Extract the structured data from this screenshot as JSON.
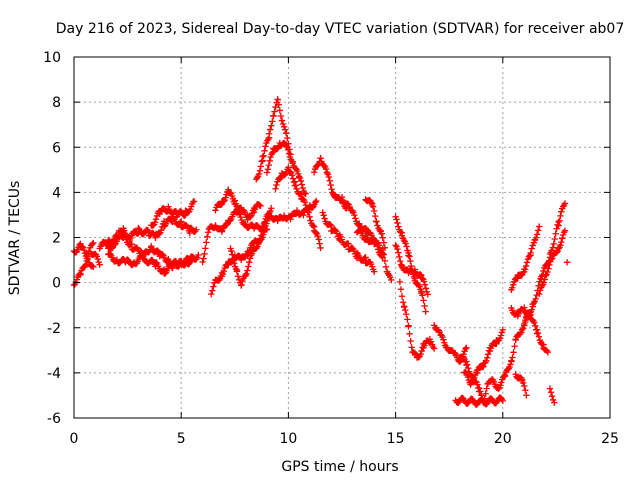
{
  "chart_data": {
    "type": "scatter",
    "title": "Day 216 of 2023, Sidereal Day-to-day VTEC variation (SDTVAR) for receiver ab07",
    "xlabel": "GPS time / hours",
    "ylabel": "SDTVAR / TECUs",
    "xlim": [
      0,
      25
    ],
    "ylim": [
      -6,
      10
    ],
    "xticks": [
      0,
      5,
      10,
      15,
      20,
      25
    ],
    "yticks": [
      -6,
      -4,
      -2,
      0,
      2,
      4,
      6,
      8,
      10
    ],
    "xtick_labels": [
      "0",
      "5",
      "10",
      "15",
      "20",
      "25"
    ],
    "ytick_labels": [
      "-6",
      "-4",
      "-2",
      "0",
      "2",
      "4",
      "6",
      "8",
      "10"
    ],
    "grid": true,
    "marker": "+",
    "series": [
      {
        "name": "ab07",
        "color": "#ff0000",
        "tracks": [
          [
            [
              0.0,
              1.4
            ],
            [
              0.3,
              1.6
            ],
            [
              0.6,
              1.2
            ],
            [
              0.8,
              0.8
            ],
            [
              0.9,
              0.6
            ]
          ],
          [
            [
              0.0,
              0.0
            ],
            [
              0.3,
              0.3
            ],
            [
              0.5,
              0.8
            ],
            [
              0.7,
              1.3
            ],
            [
              0.9,
              1.8
            ]
          ],
          [
            [
              1.2,
              1.6
            ],
            [
              1.6,
              1.8
            ],
            [
              2.0,
              2.0
            ],
            [
              2.3,
              2.3
            ],
            [
              2.6,
              2.0
            ],
            [
              3.0,
              2.3
            ],
            [
              3.5,
              2.2
            ],
            [
              3.8,
              2.0
            ],
            [
              4.2,
              2.6
            ],
            [
              4.6,
              2.8
            ],
            [
              5.0,
              2.6
            ],
            [
              5.4,
              2.3
            ],
            [
              5.7,
              2.4
            ]
          ],
          [
            [
              1.6,
              1.2
            ],
            [
              2.0,
              1.0
            ],
            [
              2.4,
              0.9
            ],
            [
              2.8,
              0.9
            ],
            [
              3.2,
              1.1
            ],
            [
              3.6,
              1.6
            ],
            [
              4.0,
              1.2
            ],
            [
              4.4,
              1.0
            ],
            [
              4.8,
              0.8
            ],
            [
              5.2,
              0.9
            ],
            [
              5.6,
              1.0
            ]
          ],
          [
            [
              1.6,
              1.4
            ],
            [
              1.9,
              1.8
            ],
            [
              2.3,
              2.1
            ],
            [
              2.7,
              1.6
            ],
            [
              3.1,
              1.3
            ],
            [
              3.4,
              1.0
            ],
            [
              3.8,
              0.8
            ],
            [
              4.2,
              0.5
            ],
            [
              4.6,
              0.7
            ],
            [
              5.0,
              0.9
            ],
            [
              5.4,
              1.0
            ],
            [
              5.8,
              1.2
            ]
          ],
          [
            [
              3.6,
              2.5
            ],
            [
              4.0,
              3.1
            ],
            [
              4.4,
              3.3
            ],
            [
              4.8,
              3.0
            ],
            [
              5.2,
              3.1
            ],
            [
              5.6,
              3.5
            ]
          ],
          [
            [
              6.0,
              1.0
            ],
            [
              6.3,
              2.3
            ],
            [
              6.6,
              2.6
            ],
            [
              6.9,
              2.2
            ],
            [
              7.2,
              2.8
            ],
            [
              7.6,
              3.1
            ],
            [
              8.0,
              2.6
            ],
            [
              8.4,
              2.4
            ],
            [
              8.8,
              2.5
            ],
            [
              9.2,
              2.9
            ]
          ],
          [
            [
              6.4,
              -0.4
            ],
            [
              6.6,
              0.0
            ],
            [
              6.9,
              0.4
            ],
            [
              7.2,
              0.8
            ],
            [
              7.5,
              1.2
            ],
            [
              7.8,
              1.0
            ],
            [
              8.1,
              1.4
            ],
            [
              8.4,
              1.7
            ],
            [
              8.7,
              2.0
            ],
            [
              9.0,
              2.3
            ]
          ],
          [
            [
              6.6,
              3.2
            ],
            [
              6.9,
              3.6
            ],
            [
              7.2,
              4.0
            ],
            [
              7.5,
              3.6
            ],
            [
              7.8,
              3.2
            ],
            [
              8.1,
              2.9
            ],
            [
              8.4,
              3.2
            ],
            [
              8.7,
              3.5
            ]
          ],
          [
            [
              7.3,
              1.4
            ],
            [
              7.6,
              0.6
            ],
            [
              7.8,
              -0.2
            ],
            [
              8.0,
              0.4
            ],
            [
              8.3,
              1.2
            ],
            [
              8.6,
              1.8
            ],
            [
              8.9,
              2.6
            ],
            [
              9.2,
              3.4
            ]
          ],
          [
            [
              8.5,
              4.5
            ],
            [
              8.8,
              5.5
            ],
            [
              9.1,
              6.5
            ],
            [
              9.3,
              7.5
            ],
            [
              9.5,
              8.0
            ],
            [
              9.7,
              7.3
            ],
            [
              9.9,
              6.5
            ],
            [
              10.1,
              5.8
            ]
          ],
          [
            [
              9.2,
              3.0
            ],
            [
              9.5,
              2.7
            ],
            [
              9.8,
              3.0
            ],
            [
              10.1,
              2.8
            ],
            [
              10.4,
              3.2
            ],
            [
              10.7,
              3.0
            ],
            [
              11.0,
              3.4
            ],
            [
              11.3,
              3.5
            ]
          ],
          [
            [
              9.0,
              5.0
            ],
            [
              9.3,
              5.8
            ],
            [
              9.6,
              6.2
            ],
            [
              9.9,
              6.0
            ],
            [
              10.2,
              5.4
            ],
            [
              10.5,
              4.6
            ],
            [
              10.8,
              4.0
            ]
          ],
          [
            [
              9.4,
              4.2
            ],
            [
              9.7,
              4.8
            ],
            [
              10.0,
              5.0
            ],
            [
              10.3,
              4.4
            ],
            [
              10.6,
              3.8
            ],
            [
              10.9,
              3.2
            ],
            [
              11.2,
              2.4
            ],
            [
              11.5,
              1.6
            ]
          ],
          [
            [
              11.2,
              4.8
            ],
            [
              11.5,
              5.6
            ],
            [
              11.8,
              4.8
            ],
            [
              12.1,
              4.0
            ],
            [
              12.4,
              3.6
            ],
            [
              12.7,
              3.4
            ]
          ],
          [
            [
              11.6,
              3.0
            ],
            [
              12.0,
              2.4
            ],
            [
              12.4,
              2.0
            ],
            [
              12.8,
              1.6
            ],
            [
              13.2,
              1.2
            ],
            [
              13.6,
              1.0
            ],
            [
              14.0,
              0.6
            ]
          ],
          [
            [
              12.5,
              3.8
            ],
            [
              12.9,
              3.2
            ],
            [
              13.3,
              2.6
            ],
            [
              13.7,
              2.2
            ],
            [
              14.1,
              1.8
            ],
            [
              14.4,
              1.0
            ]
          ],
          [
            [
              13.6,
              3.8
            ],
            [
              13.9,
              3.4
            ],
            [
              14.1,
              2.8
            ],
            [
              14.3,
              2.2
            ],
            [
              14.5,
              1.6
            ]
          ],
          [
            [
              13.2,
              2.3
            ],
            [
              13.6,
              2.0
            ],
            [
              14.0,
              1.8
            ],
            [
              14.4,
              1.4
            ],
            [
              14.6,
              0.6
            ],
            [
              14.8,
              0.0
            ]
          ],
          [
            [
              15.0,
              1.6
            ],
            [
              15.3,
              0.8
            ],
            [
              15.6,
              0.4
            ],
            [
              15.9,
              0.6
            ],
            [
              16.2,
              0.2
            ],
            [
              16.5,
              -0.4
            ]
          ],
          [
            [
              15.0,
              2.8
            ],
            [
              15.3,
              2.2
            ],
            [
              15.6,
              1.2
            ],
            [
              15.9,
              0.2
            ],
            [
              16.2,
              -0.5
            ],
            [
              16.4,
              -1.2
            ]
          ],
          [
            [
              15.2,
              0.0
            ],
            [
              15.4,
              -1.0
            ],
            [
              15.6,
              -2.0
            ],
            [
              15.8,
              -3.0
            ],
            [
              16.0,
              -3.4
            ],
            [
              16.3,
              -2.8
            ],
            [
              16.6,
              -2.6
            ],
            [
              16.8,
              -2.8
            ]
          ],
          [
            [
              16.8,
              -1.8
            ],
            [
              17.1,
              -2.4
            ],
            [
              17.4,
              -2.8
            ],
            [
              17.7,
              -3.2
            ],
            [
              18.0,
              -3.4
            ],
            [
              18.3,
              -3.0
            ]
          ],
          [
            [
              18.0,
              -3.2
            ],
            [
              18.3,
              -3.6
            ],
            [
              18.6,
              -4.2
            ],
            [
              18.9,
              -4.8
            ],
            [
              19.1,
              -5.2
            ],
            [
              19.3,
              -4.6
            ],
            [
              19.5,
              -4.2
            ]
          ],
          [
            [
              18.2,
              -4.0
            ],
            [
              18.5,
              -4.4
            ],
            [
              18.8,
              -4.0
            ],
            [
              19.1,
              -3.6
            ],
            [
              19.4,
              -3.0
            ],
            [
              19.7,
              -2.6
            ],
            [
              20.0,
              -2.2
            ]
          ],
          [
            [
              19.5,
              -4.4
            ],
            [
              19.8,
              -4.6
            ],
            [
              20.1,
              -4.2
            ],
            [
              20.4,
              -3.4
            ],
            [
              20.6,
              -2.6
            ],
            [
              20.9,
              -2.0
            ],
            [
              21.1,
              -1.6
            ]
          ],
          [
            [
              20.4,
              -1.2
            ],
            [
              20.7,
              -1.4
            ],
            [
              21.0,
              -1.2
            ],
            [
              21.3,
              -1.5
            ],
            [
              21.6,
              -2.2
            ],
            [
              21.9,
              -2.8
            ],
            [
              22.1,
              -3.2
            ]
          ],
          [
            [
              20.6,
              -4.0
            ],
            [
              20.9,
              -4.4
            ],
            [
              21.1,
              -5.0
            ]
          ],
          [
            [
              20.4,
              -0.2
            ],
            [
              20.7,
              0.2
            ],
            [
              21.0,
              0.6
            ],
            [
              21.3,
              1.2
            ],
            [
              21.5,
              2.0
            ],
            [
              21.7,
              2.4
            ]
          ],
          [
            [
              21.0,
              -1.8
            ],
            [
              21.4,
              -1.0
            ],
            [
              21.8,
              0.2
            ],
            [
              22.2,
              1.2
            ],
            [
              22.6,
              2.6
            ],
            [
              22.9,
              3.6
            ]
          ],
          [
            [
              21.7,
              -0.6
            ],
            [
              22.0,
              0.4
            ],
            [
              22.3,
              1.0
            ],
            [
              22.6,
              1.6
            ],
            [
              22.9,
              2.2
            ]
          ],
          [
            [
              22.2,
              -4.8
            ],
            [
              22.4,
              -5.2
            ]
          ],
          [
            [
              17.8,
              -5.2
            ],
            [
              18.9,
              -5.3
            ],
            [
              20.0,
              -5.2
            ]
          ],
          [
            [
              0.8,
              1.4
            ],
            [
              1.2,
              0.9
            ]
          ],
          [
            [
              2.1,
              2.3
            ],
            [
              23.0,
              0.9
            ]
          ]
        ]
      }
    ]
  }
}
